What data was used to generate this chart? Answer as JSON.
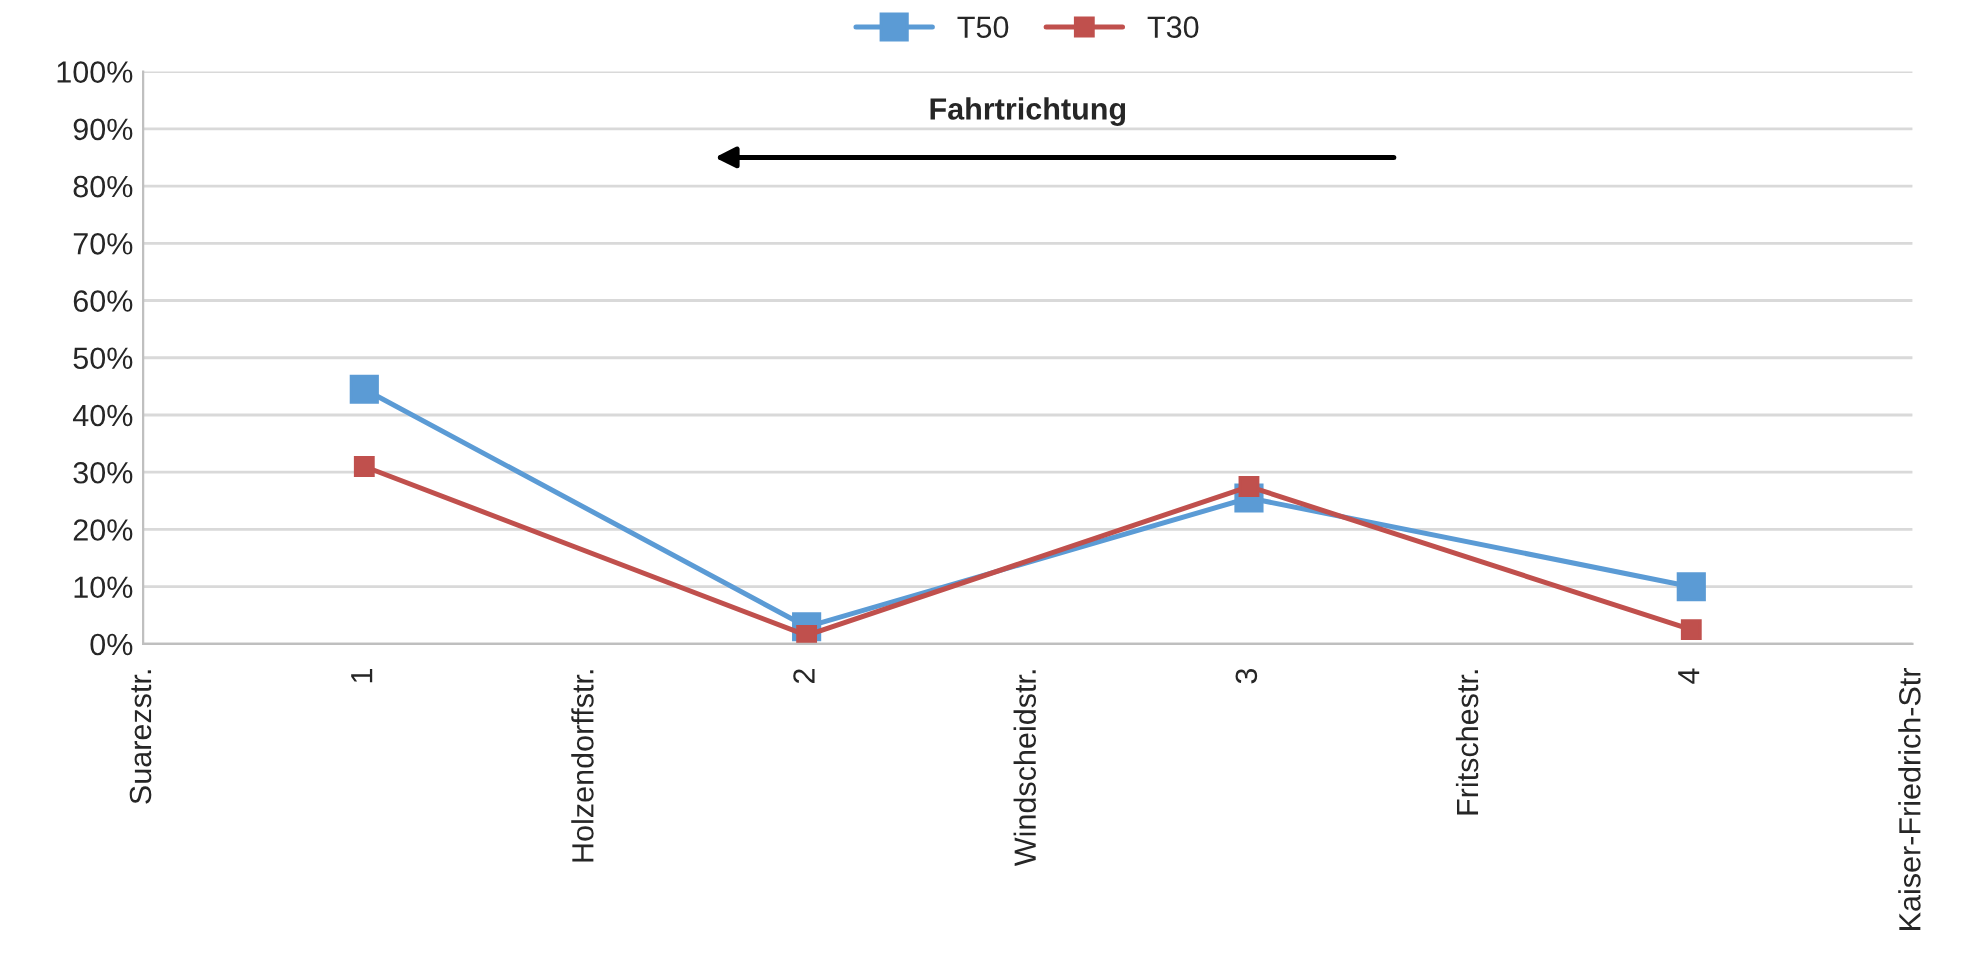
{
  "chart_data": {
    "type": "line",
    "categories": [
      "Suarezstr.",
      "1",
      "Holzendorffstr.",
      "2",
      "Windscheidstr.",
      "3",
      "Fritschestr.",
      "4",
      "Kaiser-Friedrich-Str"
    ],
    "series": [
      {
        "name": "T50",
        "color": "#5b9bd5",
        "values": [
          null,
          44.5,
          null,
          3,
          null,
          25.5,
          null,
          10,
          null
        ]
      },
      {
        "name": "T30",
        "color": "#c0504d",
        "values": [
          null,
          31,
          null,
          1.5,
          null,
          27.5,
          null,
          2.5,
          null
        ]
      }
    ],
    "ylim": [
      0,
      100
    ],
    "yticks": [
      {
        "value": 0,
        "label": "0%"
      },
      {
        "value": 10,
        "label": "10%"
      },
      {
        "value": 20,
        "label": "20%"
      },
      {
        "value": 30,
        "label": "30%"
      },
      {
        "value": 40,
        "label": "40%"
      },
      {
        "value": 50,
        "label": "50%"
      },
      {
        "value": 60,
        "label": "60%"
      },
      {
        "value": 70,
        "label": "70%"
      },
      {
        "value": 80,
        "label": "80%"
      },
      {
        "value": 90,
        "label": "90%"
      },
      {
        "value": 100,
        "label": "100%"
      }
    ],
    "annotations": [
      "Fahrtrichtung"
    ],
    "grid": "y",
    "legend": "top",
    "marker": "square",
    "line_style": "solid"
  }
}
